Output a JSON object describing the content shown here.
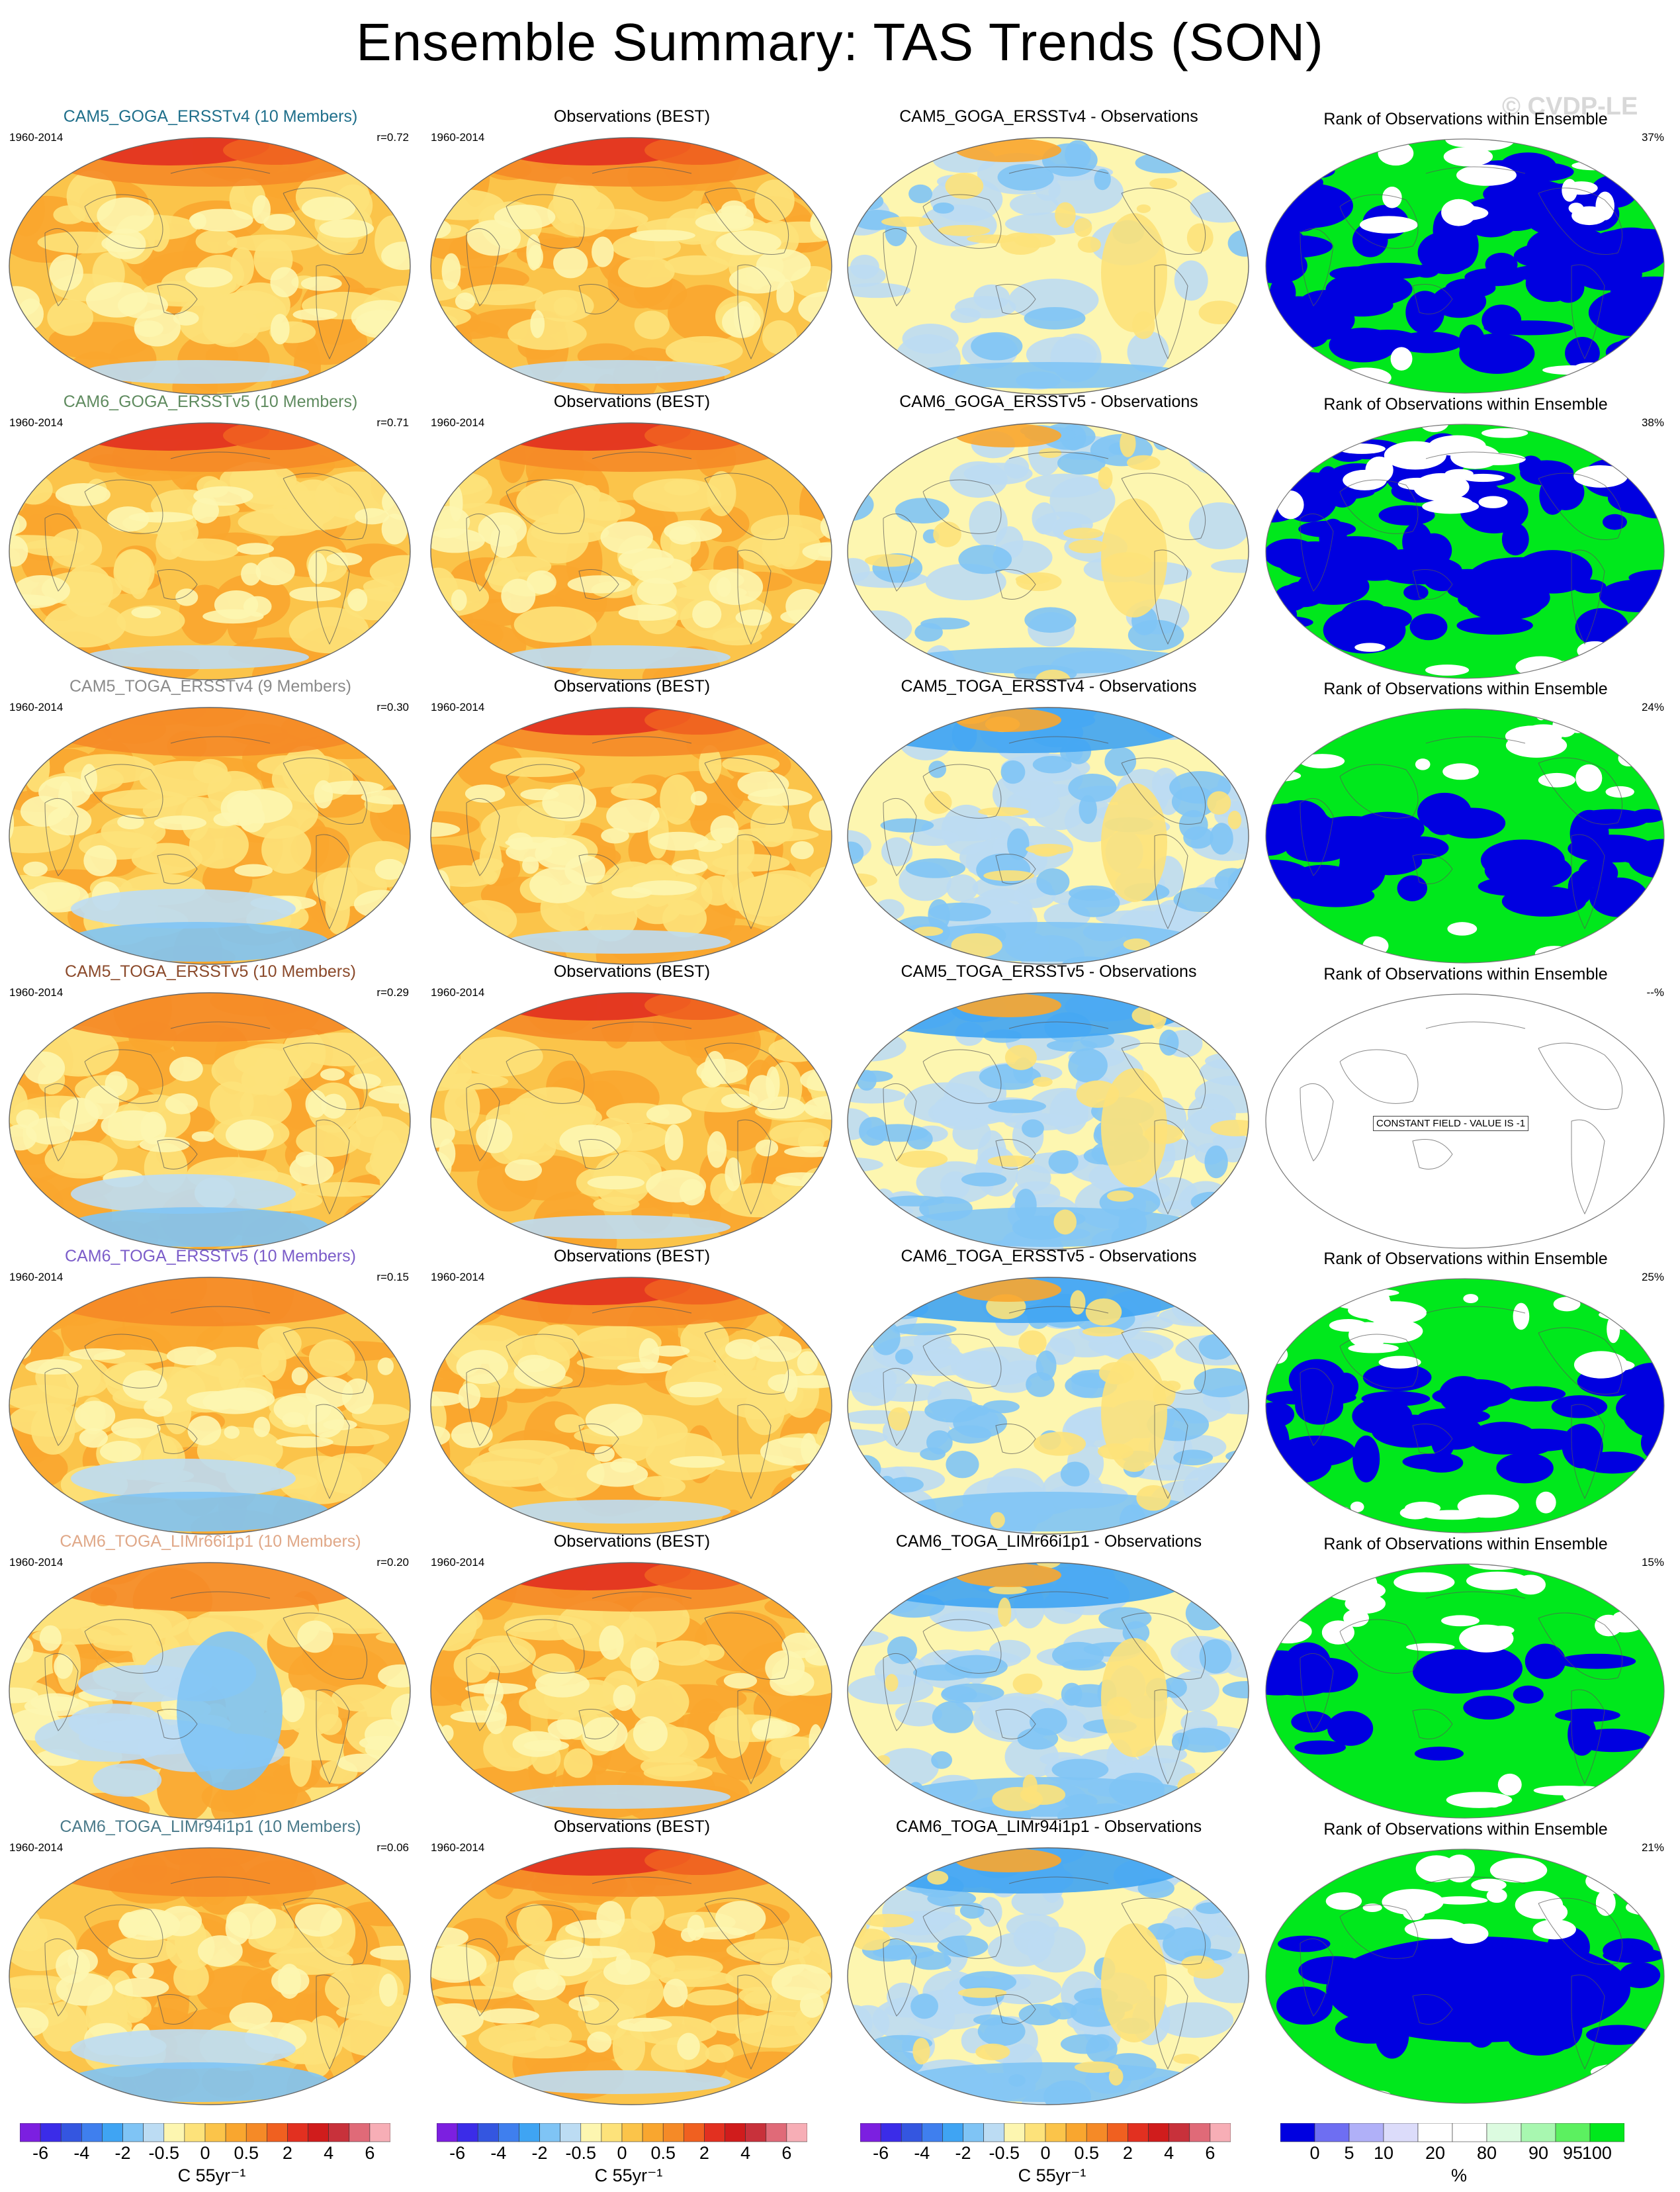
{
  "title": "Ensemble Summary: TAS Trends (SON)",
  "watermark": "© CVDP-LE",
  "colors": {
    "trend_scale": [
      "#7c1fe0",
      "#3b2ce8",
      "#3456e0",
      "#3f7fee",
      "#3fa4f3",
      "#7fc4f5",
      "#bcdcf3",
      "#fdf6b0",
      "#fde27a",
      "#fbc44a",
      "#f9a62f",
      "#f58a27",
      "#f06020",
      "#e23020",
      "#d01c1c",
      "#c8313b",
      "#e06a78",
      "#f7aeb6"
    ],
    "rank_scale": [
      "#0000e0",
      "#6e6ef2",
      "#b0b0f8",
      "#dcdcfa",
      "#ffffff",
      "#ffffff",
      "#dcfbe0",
      "#a8f7b0",
      "#5cf060",
      "#00e81c"
    ]
  },
  "rows": [
    {
      "model": {
        "title": "CAM5_GOGA_ERSSTv4 (10 Members)",
        "title_color": "#1f6f8b",
        "period": "1960-2014",
        "corr": "r=0.72",
        "profile": "goga"
      },
      "obs": {
        "title": "Observations (BEST)",
        "period": "1960-2014"
      },
      "diff": {
        "title": "CAM5_GOGA_ERSSTv4 - Observations",
        "profile": "diff_goga"
      },
      "rank": {
        "title": "Rank of Observations within Ensemble",
        "pct": "37%",
        "pattern": "goga"
      }
    },
    {
      "model": {
        "title": "CAM6_GOGA_ERSSTv5 (10 Members)",
        "title_color": "#5f8b5f",
        "period": "1960-2014",
        "corr": "r=0.71",
        "profile": "goga6"
      },
      "obs": {
        "title": "Observations (BEST)",
        "period": "1960-2014"
      },
      "diff": {
        "title": "CAM6_GOGA_ERSSTv5 - Observations",
        "profile": "diff_goga"
      },
      "rank": {
        "title": "Rank of Observations within Ensemble",
        "pct": "38%",
        "pattern": "goga6"
      }
    },
    {
      "model": {
        "title": "CAM5_TOGA_ERSSTv4 (9 Members)",
        "title_color": "#8a8a8a",
        "period": "1960-2014",
        "corr": "r=0.30",
        "profile": "toga"
      },
      "obs": {
        "title": "Observations (BEST)",
        "period": "1960-2014"
      },
      "diff": {
        "title": "CAM5_TOGA_ERSSTv4 - Observations",
        "profile": "diff_toga"
      },
      "rank": {
        "title": "Rank of Observations within Ensemble",
        "pct": "24%",
        "pattern": "toga"
      }
    },
    {
      "model": {
        "title": "CAM5_TOGA_ERSSTv5 (10 Members)",
        "title_color": "#8b4a2b",
        "period": "1960-2014",
        "corr": "r=0.29",
        "profile": "toga"
      },
      "obs": {
        "title": "Observations (BEST)",
        "period": "1960-2014"
      },
      "diff": {
        "title": "CAM5_TOGA_ERSSTv5 - Observations",
        "profile": "diff_toga"
      },
      "rank": {
        "title": "Rank of Observations within Ensemble",
        "pct": "--%",
        "pattern": "constant",
        "constant_label": "CONSTANT FIELD - VALUE IS -1"
      }
    },
    {
      "model": {
        "title": "CAM6_TOGA_ERSSTv5 (10 Members)",
        "title_color": "#7b5cc9",
        "period": "1960-2014",
        "corr": "r=0.15",
        "profile": "toga6"
      },
      "obs": {
        "title": "Observations (BEST)",
        "period": "1960-2014"
      },
      "diff": {
        "title": "CAM6_TOGA_ERSSTv5 - Observations",
        "profile": "diff_toga"
      },
      "rank": {
        "title": "Rank of Observations within Ensemble",
        "pct": "25%",
        "pattern": "toga6"
      }
    },
    {
      "model": {
        "title": "CAM6_TOGA_LIMr66i1p1 (10 Members)",
        "title_color": "#e0a888",
        "period": "1960-2014",
        "corr": "r=0.20",
        "profile": "lim66"
      },
      "obs": {
        "title": "Observations (BEST)",
        "period": "1960-2014"
      },
      "diff": {
        "title": "CAM6_TOGA_LIMr66i1p1 - Observations",
        "profile": "diff_lim"
      },
      "rank": {
        "title": "Rank of Observations within Ensemble",
        "pct": "15%",
        "pattern": "lim66"
      }
    },
    {
      "model": {
        "title": "CAM6_TOGA_LIMr94i1p1 (10 Members)",
        "title_color": "#4a7a8a",
        "period": "1960-2014",
        "corr": "r=0.06",
        "profile": "lim94"
      },
      "obs": {
        "title": "Observations (BEST)",
        "period": "1960-2014"
      },
      "diff": {
        "title": "CAM6_TOGA_LIMr94i1p1 - Observations",
        "profile": "diff_toga"
      },
      "rank": {
        "title": "Rank of Observations within Ensemble",
        "pct": "21%",
        "pattern": "lim94"
      }
    }
  ],
  "colorbars": {
    "trend": {
      "labels": [
        "-6",
        "-4",
        "-2",
        "-0.5",
        "0",
        "0.5",
        "2",
        "4",
        "6"
      ],
      "unit": "C 55yr⁻¹"
    },
    "rank": {
      "labels": [
        "0",
        "5",
        "10",
        "20",
        "80",
        "90",
        "95",
        "100"
      ],
      "unit": "%"
    }
  }
}
